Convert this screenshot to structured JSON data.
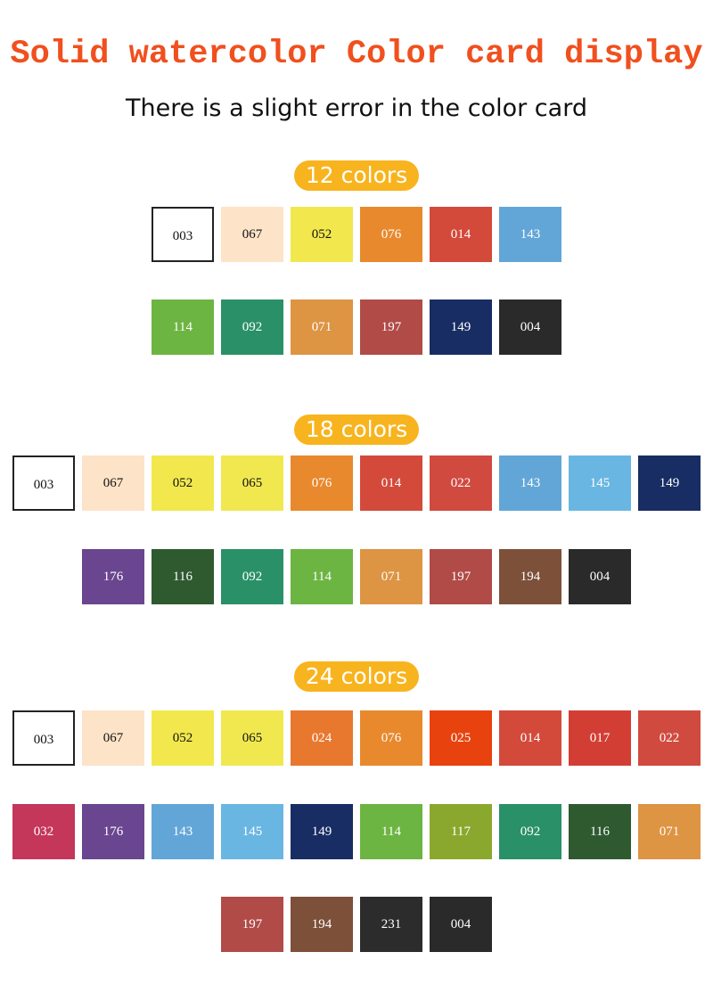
{
  "title": "Solid watercolor Color card display",
  "subtitle": "There is a slight error in the color card",
  "sections": [
    {
      "label": "12 colors",
      "rows": [
        [
          {
            "code": "003",
            "color": "#ffffff"
          },
          {
            "code": "067",
            "color": "#fde3c8"
          },
          {
            "code": "052",
            "color": "#f2e84e"
          },
          {
            "code": "076",
            "color": "#e8892e"
          },
          {
            "code": "014",
            "color": "#d34a3b"
          },
          {
            "code": "143",
            "color": "#62a6d8"
          }
        ],
        [
          {
            "code": "114",
            "color": "#6db543"
          },
          {
            "code": "092",
            "color": "#2a9068"
          },
          {
            "code": "071",
            "color": "#dd9443"
          },
          {
            "code": "197",
            "color": "#b04b48"
          },
          {
            "code": "149",
            "color": "#182d63"
          },
          {
            "code": "004",
            "color": "#2a2a2a"
          }
        ]
      ]
    },
    {
      "label": "18 colors",
      "rows": [
        [
          {
            "code": "003",
            "color": "#ffffff"
          },
          {
            "code": "067",
            "color": "#fde3c8"
          },
          {
            "code": "052",
            "color": "#f2e84e"
          },
          {
            "code": "065",
            "color": "#f1e850"
          },
          {
            "code": "076",
            "color": "#e8892e"
          },
          {
            "code": "014",
            "color": "#d34a3b"
          },
          {
            "code": "022",
            "color": "#d14a3f"
          },
          {
            "code": "143",
            "color": "#62a6d8"
          },
          {
            "code": "145",
            "color": "#6ab6e2"
          },
          {
            "code": "149",
            "color": "#182d63"
          }
        ],
        [
          {
            "code": "176",
            "color": "#6a4590"
          },
          {
            "code": "116",
            "color": "#2f5a30"
          },
          {
            "code": "092",
            "color": "#2a9068"
          },
          {
            "code": "114",
            "color": "#6db543"
          },
          {
            "code": "071",
            "color": "#dd9443"
          },
          {
            "code": "197",
            "color": "#b04b48"
          },
          {
            "code": "194",
            "color": "#7d5039"
          },
          {
            "code": "004",
            "color": "#2a2a2a"
          }
        ]
      ]
    },
    {
      "label": "24 colors",
      "rows": [
        [
          {
            "code": "003",
            "color": "#ffffff"
          },
          {
            "code": "067",
            "color": "#fde3c8"
          },
          {
            "code": "052",
            "color": "#f2e84e"
          },
          {
            "code": "065",
            "color": "#f1e850"
          },
          {
            "code": "024",
            "color": "#e8782e"
          },
          {
            "code": "076",
            "color": "#e8892e"
          },
          {
            "code": "025",
            "color": "#e8430f"
          },
          {
            "code": "014",
            "color": "#d34a3b"
          },
          {
            "code": "017",
            "color": "#d33e34"
          },
          {
            "code": "022",
            "color": "#d14a3f"
          }
        ],
        [
          {
            "code": "032",
            "color": "#c4365a"
          },
          {
            "code": "176",
            "color": "#6a4590"
          },
          {
            "code": "143",
            "color": "#62a6d8"
          },
          {
            "code": "145",
            "color": "#6ab6e2"
          },
          {
            "code": "149",
            "color": "#182d63"
          },
          {
            "code": "114",
            "color": "#6db543"
          },
          {
            "code": "117",
            "color": "#8aa82e"
          },
          {
            "code": "092",
            "color": "#2a9068"
          },
          {
            "code": "116",
            "color": "#2f5a30"
          },
          {
            "code": "071",
            "color": "#dd9443"
          }
        ],
        [
          {
            "code": "197",
            "color": "#b04b48"
          },
          {
            "code": "194",
            "color": "#7d5039"
          },
          {
            "code": "231",
            "color": "#2c2c2c"
          },
          {
            "code": "004",
            "color": "#2a2a2a"
          }
        ]
      ]
    }
  ]
}
